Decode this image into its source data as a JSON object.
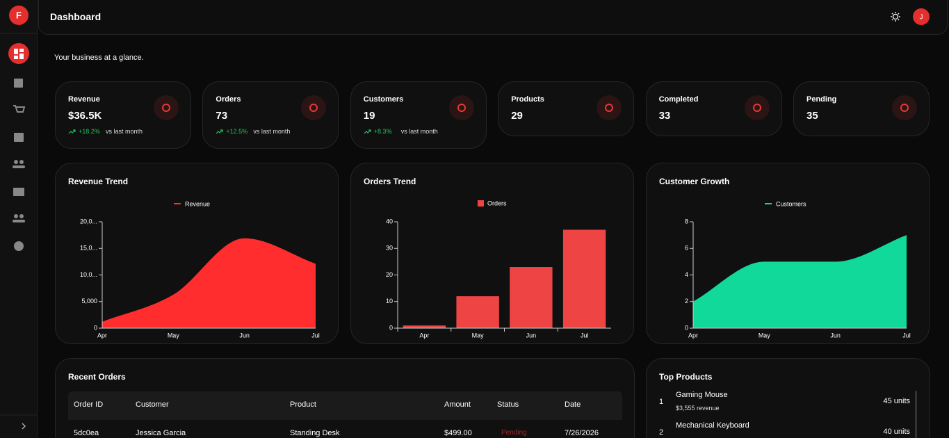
{
  "brand": "F",
  "header": {
    "title": "Dashboard",
    "avatar": "J"
  },
  "subtitle": "Your business at a glance.",
  "stats": [
    {
      "label": "Revenue",
      "value": "$36.5K",
      "change": "+18.2%",
      "note": "vs last month"
    },
    {
      "label": "Orders",
      "value": "73",
      "change": "+12.5%",
      "note": "vs last month"
    },
    {
      "label": "Customers",
      "value": "19",
      "change": "+8.3%",
      "note": "vs last month"
    },
    {
      "label": "Products",
      "value": "29"
    },
    {
      "label": "Completed",
      "value": "33"
    },
    {
      "label": "Pending",
      "value": "35"
    }
  ],
  "chart_data": [
    {
      "type": "area",
      "title": "Revenue Trend",
      "categories": [
        "Apr",
        "May",
        "Jun",
        "Jul"
      ],
      "series": [
        {
          "name": "Revenue",
          "color": "#ff2d2d",
          "values": [
            1200,
            6300,
            16900,
            12100
          ]
        }
      ],
      "ylim": [
        0,
        20000
      ],
      "yticks": [
        0,
        {
          "value": 5000,
          "label": "5,000"
        },
        {
          "value": 10000,
          "label": "10,0..."
        },
        {
          "value": 15000,
          "label": "15,0..."
        },
        {
          "value": 20000,
          "label": "20,0..."
        }
      ]
    },
    {
      "type": "bar",
      "title": "Orders Trend",
      "categories": [
        "Apr",
        "May",
        "Jun",
        "Jul"
      ],
      "series": [
        {
          "name": "Orders",
          "color": "#ef4444",
          "values": [
            1,
            12,
            23,
            37
          ]
        }
      ],
      "ylim": [
        0,
        40
      ],
      "yticks": [
        0,
        10,
        20,
        30,
        40
      ]
    },
    {
      "type": "area",
      "title": "Customer Growth",
      "categories": [
        "Apr",
        "May",
        "Jun",
        "Jul"
      ],
      "series": [
        {
          "name": "Customers",
          "color": "#10d99a",
          "values": [
            2,
            5,
            5,
            7
          ]
        }
      ],
      "ylim": [
        0,
        8
      ],
      "yticks": [
        0,
        2,
        4,
        6,
        8
      ]
    }
  ],
  "orders": {
    "title": "Recent Orders",
    "columns": [
      "Order ID",
      "Customer",
      "Product",
      "Amount",
      "Status",
      "Date"
    ],
    "rows": [
      [
        "5dc0ea",
        "Jessica Garcia",
        "Standing Desk",
        "$499.00",
        "Pending",
        "7/26/2026"
      ]
    ]
  },
  "products": {
    "title": "Top Products",
    "items": [
      {
        "rank": "1",
        "name": "Gaming Mouse",
        "revenue": "$3,555 revenue",
        "units": "45 units"
      },
      {
        "rank": "2",
        "name": "Mechanical Keyboard",
        "units": "40 units"
      }
    ]
  }
}
